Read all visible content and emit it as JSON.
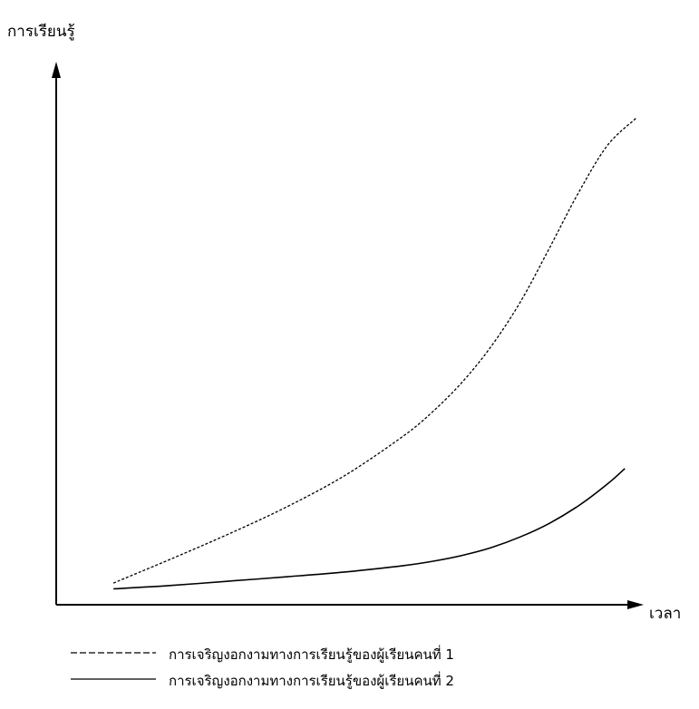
{
  "chart_data": {
    "type": "line",
    "title": "",
    "ylabel": "การเรียนรู้",
    "xlabel": "เวลา",
    "axis_ticks": false,
    "grid": false,
    "legend_placement": "bottom",
    "xlim": [
      0,
      10
    ],
    "ylim": [
      0,
      10
    ],
    "series": [
      {
        "name": "การเจริญงอกงามทางการเรียนรู้ของผู้เรียนคนที่ 1",
        "line_style": "dashed",
        "color": "#000000",
        "x": [
          1.0,
          2.0,
          3.0,
          4.0,
          5.0,
          6.0,
          6.5,
          7.0,
          7.5,
          8.0,
          8.5,
          9.0,
          9.5,
          10.0
        ],
        "y": [
          0.41,
          0.91,
          1.43,
          1.99,
          2.64,
          3.45,
          3.95,
          4.55,
          5.29,
          6.2,
          7.31,
          8.45,
          9.43,
          10.0
        ]
      },
      {
        "name": "การเจริญงอกงามทางการเรียนรู้ของผู้เรียนคนที่ 2",
        "line_style": "solid",
        "color": "#000000",
        "x": [
          1.0,
          2.0,
          3.0,
          4.0,
          5.0,
          6.0,
          6.5,
          7.0,
          7.5,
          8.0,
          8.5,
          9.0,
          9.5,
          9.8
        ],
        "y": [
          0.29,
          0.36,
          0.45,
          0.54,
          0.64,
          0.77,
          0.86,
          0.98,
          1.14,
          1.36,
          1.64,
          2.0,
          2.45,
          2.77
        ]
      }
    ]
  }
}
